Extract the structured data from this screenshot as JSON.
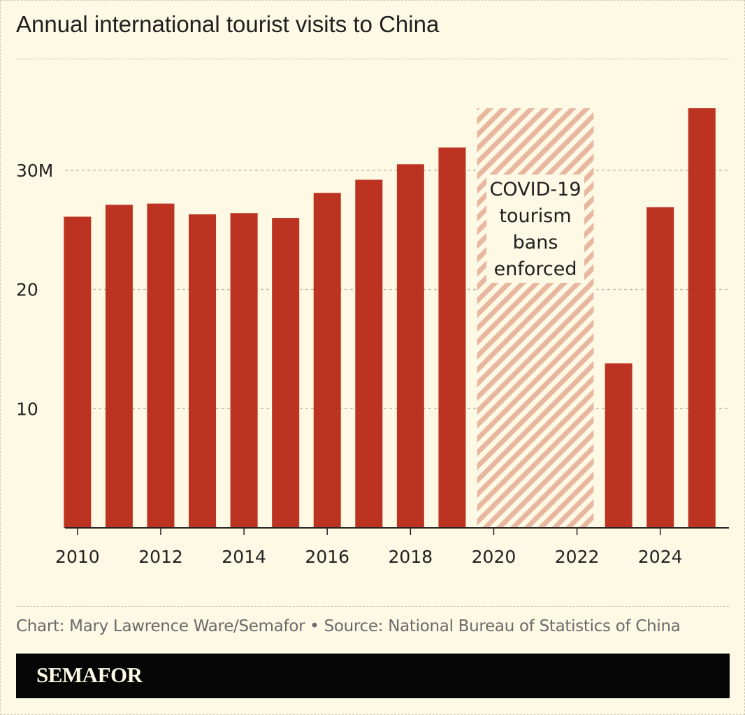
{
  "chart_data": {
    "type": "bar",
    "title": "Annual international tourist visits to China",
    "categories": [
      2010,
      2011,
      2012,
      2013,
      2014,
      2015,
      2016,
      2017,
      2018,
      2019,
      2023,
      2024,
      2025
    ],
    "values": [
      26.1,
      27.1,
      27.2,
      26.3,
      26.4,
      26.0,
      28.1,
      29.2,
      30.5,
      31.9,
      13.8,
      26.9,
      35.2
    ],
    "x_tick_labels": [
      "2010",
      "2012",
      "2014",
      "2016",
      "2018",
      "2020",
      "2022",
      "2024"
    ],
    "x_ticks": [
      2010,
      2012,
      2014,
      2016,
      2018,
      2020,
      2022,
      2024
    ],
    "y_tick_labels": [
      "30M",
      "20",
      "10"
    ],
    "y_ticks": [
      30,
      20,
      10
    ],
    "ylim": [
      0,
      35.2
    ],
    "xlim": [
      2009.7,
      2025.65
    ],
    "grid": true,
    "bar_color": "#bc3321",
    "annotation": {
      "lines": [
        "COVID-19",
        "tourism",
        "bans",
        "enforced"
      ],
      "x_range": [
        2019.6,
        2022.4
      ],
      "hatch_color": "#e8b7a0"
    }
  },
  "footer": {
    "credit": "Chart: Mary Lawrence Ware/Semafor • Source: National Bureau of Statistics of China",
    "brand": "SEMAFOR"
  }
}
